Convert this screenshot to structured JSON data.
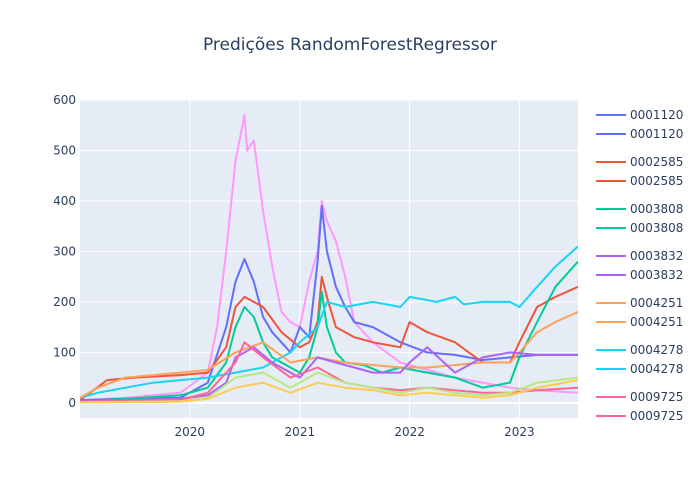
{
  "chart_data": {
    "type": "line",
    "title": "Predições RandomForestRegressor",
    "xlabel": "",
    "ylabel": "",
    "x_ticks": [
      "2020",
      "2021",
      "2022",
      "2023"
    ],
    "x_range": [
      "2019-01-01",
      "2023-07-15"
    ],
    "ylim": [
      -30,
      600
    ],
    "y_ticks": [
      0,
      100,
      200,
      300,
      400,
      500,
      600
    ],
    "grid": true,
    "legend_position": "right",
    "legend": [
      {
        "label": "0001120",
        "color": "#636efa"
      },
      {
        "label": "0001120",
        "color": "#636efa"
      },
      {
        "label": "0002585",
        "color": "#ef553b"
      },
      {
        "label": "0002585",
        "color": "#ef553b"
      },
      {
        "label": "0003808",
        "color": "#00cc96"
      },
      {
        "label": "0003808",
        "color": "#00cc96"
      },
      {
        "label": "0003832",
        "color": "#ab63fa"
      },
      {
        "label": "0003832",
        "color": "#ab63fa"
      },
      {
        "label": "0004251",
        "color": "#ffa15a"
      },
      {
        "label": "0004251",
        "color": "#ffa15a"
      },
      {
        "label": "0004278",
        "color": "#19d3f3"
      },
      {
        "label": "0004278",
        "color": "#19d3f3"
      },
      {
        "label": "0009725",
        "color": "#ff6692"
      },
      {
        "label": "0009725",
        "color": "#ff6692"
      }
    ],
    "series": [
      {
        "color": "#ff97ff",
        "x": [
          "2019-01-01",
          "2019-06-01",
          "2019-12-01",
          "2020-03-01",
          "2020-04-01",
          "2020-05-01",
          "2020-06-01",
          "2020-07-01",
          "2020-07-10",
          "2020-08-01",
          "2020-09-01",
          "2020-10-01",
          "2020-11-01",
          "2020-12-01",
          "2021-01-01",
          "2021-02-01",
          "2021-03-01",
          "2021-03-15",
          "2021-04-01",
          "2021-05-01",
          "2021-06-01",
          "2021-07-01",
          "2021-09-01",
          "2021-12-01",
          "2022-06-01",
          "2022-12-01",
          "2023-03-01",
          "2023-07-15"
        ],
        "y": [
          5,
          10,
          20,
          60,
          150,
          300,
          480,
          570,
          500,
          520,
          380,
          270,
          180,
          160,
          150,
          240,
          300,
          400,
          360,
          320,
          250,
          160,
          120,
          80,
          50,
          30,
          25,
          20
        ]
      },
      {
        "color": "#636efa",
        "x": [
          "2019-01-01",
          "2019-06-01",
          "2019-12-01",
          "2020-03-01",
          "2020-05-01",
          "2020-06-01",
          "2020-07-01",
          "2020-08-01",
          "2020-09-01",
          "2020-10-01",
          "2020-12-01",
          "2021-01-01",
          "2021-02-01",
          "2021-03-01",
          "2021-03-15",
          "2021-04-01",
          "2021-05-01",
          "2021-06-01",
          "2021-07-01",
          "2021-09-01",
          "2021-12-01",
          "2022-03-01",
          "2022-06-01",
          "2022-09-01",
          "2022-12-01",
          "2023-03-01",
          "2023-07-15"
        ],
        "y": [
          5,
          8,
          10,
          40,
          150,
          240,
          285,
          240,
          170,
          140,
          100,
          150,
          130,
          280,
          390,
          300,
          230,
          190,
          160,
          150,
          120,
          100,
          95,
          85,
          90,
          95,
          95
        ]
      },
      {
        "color": "#ef553b",
        "x": [
          "2019-01-01",
          "2019-04-01",
          "2019-07-01",
          "2019-12-01",
          "2020-03-01",
          "2020-05-01",
          "2020-06-01",
          "2020-07-01",
          "2020-08-01",
          "2020-09-01",
          "2020-11-01",
          "2021-01-01",
          "2021-02-01",
          "2021-03-01",
          "2021-03-15",
          "2021-04-01",
          "2021-05-01",
          "2021-07-01",
          "2021-09-01",
          "2021-12-01",
          "2022-01-01",
          "2022-03-01",
          "2022-06-01",
          "2022-09-01",
          "2022-12-01",
          "2023-01-01",
          "2023-03-01",
          "2023-05-01",
          "2023-07-15"
        ],
        "y": [
          5,
          45,
          50,
          55,
          60,
          110,
          190,
          210,
          200,
          190,
          140,
          110,
          120,
          160,
          250,
          210,
          150,
          130,
          120,
          110,
          160,
          140,
          120,
          80,
          80,
          120,
          190,
          210,
          230
        ]
      },
      {
        "color": "#00cc96",
        "x": [
          "2019-01-01",
          "2019-06-01",
          "2019-12-01",
          "2020-03-01",
          "2020-05-01",
          "2020-06-01",
          "2020-07-01",
          "2020-08-01",
          "2020-09-01",
          "2020-10-01",
          "2020-12-01",
          "2021-01-01",
          "2021-02-01",
          "2021-03-01",
          "2021-03-15",
          "2021-04-01",
          "2021-05-01",
          "2021-06-01",
          "2021-08-01",
          "2021-10-01",
          "2021-12-01",
          "2022-03-01",
          "2022-06-01",
          "2022-09-01",
          "2022-12-01",
          "2023-01-01",
          "2023-03-01",
          "2023-05-01",
          "2023-07-15"
        ],
        "y": [
          2,
          8,
          15,
          30,
          80,
          150,
          190,
          170,
          120,
          90,
          70,
          60,
          90,
          150,
          220,
          150,
          100,
          80,
          75,
          60,
          70,
          60,
          50,
          30,
          40,
          90,
          160,
          230,
          280
        ]
      },
      {
        "color": "#19d3f3",
        "x": [
          "2019-01-01",
          "2019-03-01",
          "2019-06-01",
          "2019-09-01",
          "2019-12-01",
          "2020-03-01",
          "2020-06-01",
          "2020-09-01",
          "2020-12-01",
          "2021-01-01",
          "2021-03-01",
          "2021-04-01",
          "2021-06-01",
          "2021-09-01",
          "2021-12-01",
          "2022-01-01",
          "2022-04-01",
          "2022-06-01",
          "2022-07-01",
          "2022-09-01",
          "2022-12-01",
          "2023-01-01",
          "2023-03-01",
          "2023-05-01",
          "2023-07-15"
        ],
        "y": [
          10,
          20,
          30,
          40,
          45,
          50,
          60,
          70,
          100,
          120,
          150,
          200,
          190,
          200,
          190,
          210,
          200,
          210,
          195,
          200,
          200,
          190,
          230,
          270,
          310
        ]
      },
      {
        "color": "#ffa15a",
        "x": [
          "2019-01-01",
          "2019-03-01",
          "2019-06-01",
          "2019-09-01",
          "2019-12-01",
          "2020-03-01",
          "2020-06-01",
          "2020-09-01",
          "2020-12-01",
          "2021-03-01",
          "2021-06-01",
          "2021-09-01",
          "2021-12-01",
          "2022-03-01",
          "2022-06-01",
          "2022-09-01",
          "2022-12-01",
          "2023-01-01",
          "2023-03-01",
          "2023-05-01",
          "2023-07-15"
        ],
        "y": [
          10,
          30,
          50,
          55,
          60,
          65,
          100,
          120,
          80,
          90,
          80,
          75,
          70,
          70,
          75,
          80,
          80,
          100,
          140,
          160,
          180
        ]
      },
      {
        "color": "#ab63fa",
        "x": [
          "2019-01-01",
          "2019-06-01",
          "2019-12-01",
          "2020-03-01",
          "2020-05-01",
          "2020-06-01",
          "2020-08-01",
          "2020-10-01",
          "2020-12-01",
          "2021-01-01",
          "2021-03-01",
          "2021-05-01",
          "2021-07-01",
          "2021-09-01",
          "2021-12-01",
          "2022-01-01",
          "2022-03-01",
          "2022-06-01",
          "2022-09-01",
          "2022-12-01",
          "2023-03-01",
          "2023-07-15"
        ],
        "y": [
          3,
          5,
          8,
          15,
          40,
          90,
          110,
          80,
          60,
          50,
          90,
          80,
          70,
          60,
          60,
          80,
          110,
          60,
          90,
          100,
          95,
          95
        ]
      },
      {
        "color": "#ff6692",
        "x": [
          "2019-01-01",
          "2019-06-01",
          "2019-12-01",
          "2020-03-01",
          "2020-06-01",
          "2020-07-01",
          "2020-09-01",
          "2020-12-01",
          "2021-03-01",
          "2021-06-01",
          "2021-09-01",
          "2021-12-01",
          "2022-03-01",
          "2022-06-01",
          "2022-09-01",
          "2022-12-01",
          "2023-03-01",
          "2023-07-15"
        ],
        "y": [
          2,
          4,
          6,
          20,
          80,
          120,
          90,
          50,
          70,
          40,
          30,
          25,
          30,
          25,
          20,
          20,
          25,
          30
        ]
      },
      {
        "color": "#b6e880",
        "x": [
          "2019-01-01",
          "2019-12-01",
          "2020-03-01",
          "2020-06-01",
          "2020-09-01",
          "2020-12-01",
          "2021-03-01",
          "2021-06-01",
          "2021-09-01",
          "2021-12-01",
          "2022-03-01",
          "2022-06-01",
          "2022-09-01",
          "2022-12-01",
          "2023-03-01",
          "2023-07-15"
        ],
        "y": [
          1,
          3,
          10,
          50,
          60,
          30,
          60,
          40,
          30,
          20,
          30,
          20,
          15,
          20,
          40,
          50
        ]
      },
      {
        "color": "#fecb52",
        "x": [
          "2019-01-01",
          "2019-12-01",
          "2020-03-01",
          "2020-06-01",
          "2020-09-01",
          "2020-12-01",
          "2021-03-01",
          "2021-06-01",
          "2021-09-01",
          "2021-12-01",
          "2022-03-01",
          "2022-06-01",
          "2022-09-01",
          "2022-12-01",
          "2023-03-01",
          "2023-07-15"
        ],
        "y": [
          1,
          2,
          8,
          30,
          40,
          20,
          40,
          30,
          25,
          15,
          20,
          15,
          10,
          15,
          30,
          45
        ]
      }
    ]
  }
}
